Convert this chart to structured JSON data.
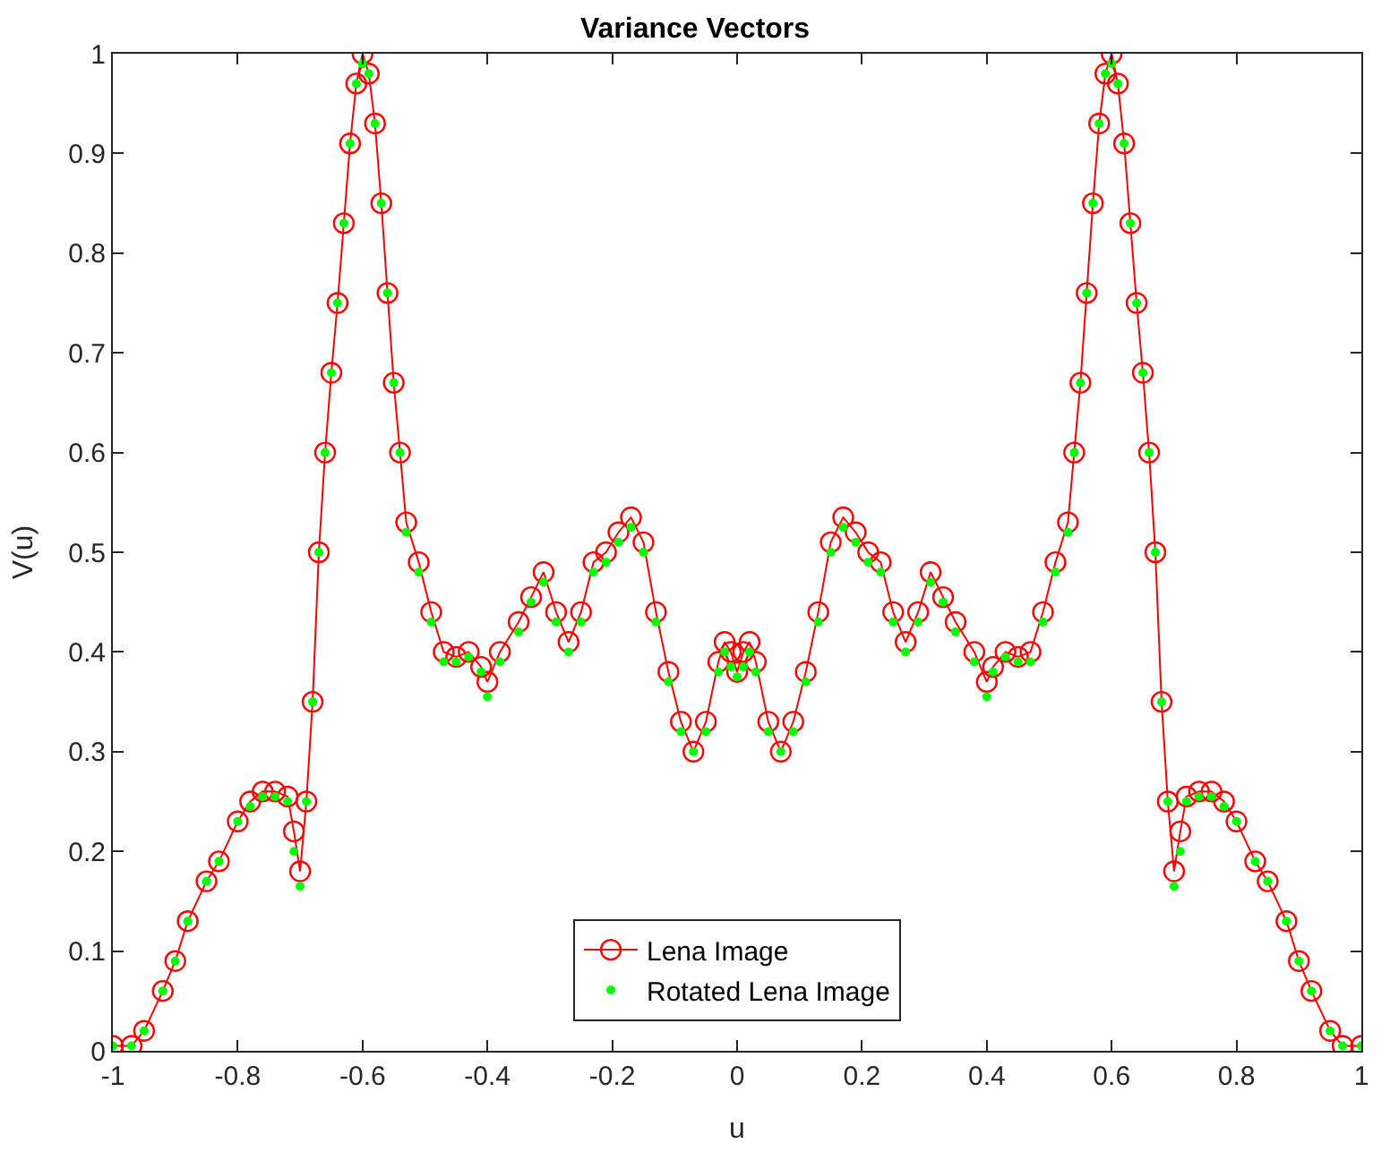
{
  "chart_data": {
    "type": "line",
    "title": "Variance Vectors",
    "xlabel": "u",
    "ylabel": "V(u)",
    "xlim": [
      -1,
      1
    ],
    "xticks": [
      -1,
      -0.8,
      -0.6,
      -0.4,
      -0.2,
      0,
      0.2,
      0.4,
      0.6,
      0.8,
      1
    ],
    "ylim": [
      0,
      1
    ],
    "yticks": [
      0,
      0.1,
      0.2,
      0.3,
      0.4,
      0.5,
      0.6,
      0.7,
      0.8,
      0.9,
      1
    ],
    "legend": "bottom",
    "series": [
      {
        "name": "Lena Image",
        "color": "#ff0000",
        "marker": "circle",
        "line_style": "solid",
        "x": [
          -1.0,
          -0.97,
          -0.95,
          -0.92,
          -0.9,
          -0.88,
          -0.85,
          -0.83,
          -0.8,
          -0.78,
          -0.76,
          -0.74,
          -0.72,
          -0.71,
          -0.7,
          -0.69,
          -0.68,
          -0.67,
          -0.66,
          -0.65,
          -0.64,
          -0.63,
          -0.62,
          -0.61,
          -0.6,
          -0.59,
          -0.58,
          -0.57,
          -0.56,
          -0.55,
          -0.54,
          -0.53,
          -0.51,
          -0.49,
          -0.47,
          -0.45,
          -0.43,
          -0.41,
          -0.4,
          -0.38,
          -0.35,
          -0.33,
          -0.31,
          -0.29,
          -0.27,
          -0.25,
          -0.23,
          -0.21,
          -0.19,
          -0.17,
          -0.15,
          -0.13,
          -0.11,
          -0.09,
          -0.07,
          -0.05,
          -0.03,
          -0.02,
          -0.01,
          0.0,
          0.01,
          0.02,
          0.03,
          0.05,
          0.07,
          0.09,
          0.11,
          0.13,
          0.15,
          0.17,
          0.19,
          0.21,
          0.23,
          0.25,
          0.27,
          0.29,
          0.31,
          0.33,
          0.35,
          0.38,
          0.4,
          0.41,
          0.43,
          0.45,
          0.47,
          0.49,
          0.51,
          0.53,
          0.54,
          0.55,
          0.56,
          0.57,
          0.58,
          0.59,
          0.6,
          0.61,
          0.62,
          0.63,
          0.64,
          0.65,
          0.66,
          0.67,
          0.68,
          0.69,
          0.7,
          0.71,
          0.72,
          0.74,
          0.76,
          0.78,
          0.8,
          0.83,
          0.85,
          0.88,
          0.9,
          0.92,
          0.95,
          0.97,
          1.0
        ],
        "values": [
          0.005,
          0.005,
          0.02,
          0.06,
          0.09,
          0.13,
          0.17,
          0.19,
          0.23,
          0.25,
          0.26,
          0.26,
          0.255,
          0.22,
          0.18,
          0.25,
          0.35,
          0.5,
          0.6,
          0.68,
          0.75,
          0.83,
          0.91,
          0.97,
          1.0,
          0.98,
          0.93,
          0.85,
          0.76,
          0.67,
          0.6,
          0.53,
          0.49,
          0.44,
          0.4,
          0.395,
          0.4,
          0.385,
          0.37,
          0.4,
          0.43,
          0.455,
          0.48,
          0.44,
          0.41,
          0.44,
          0.49,
          0.5,
          0.52,
          0.535,
          0.51,
          0.44,
          0.38,
          0.33,
          0.3,
          0.33,
          0.39,
          0.41,
          0.4,
          0.38,
          0.4,
          0.41,
          0.39,
          0.33,
          0.3,
          0.33,
          0.38,
          0.44,
          0.51,
          0.535,
          0.52,
          0.5,
          0.49,
          0.44,
          0.41,
          0.44,
          0.48,
          0.455,
          0.43,
          0.4,
          0.37,
          0.385,
          0.4,
          0.395,
          0.4,
          0.44,
          0.49,
          0.53,
          0.6,
          0.67,
          0.76,
          0.85,
          0.93,
          0.98,
          1.0,
          0.97,
          0.91,
          0.83,
          0.75,
          0.68,
          0.6,
          0.5,
          0.35,
          0.25,
          0.18,
          0.22,
          0.255,
          0.26,
          0.26,
          0.25,
          0.23,
          0.19,
          0.17,
          0.13,
          0.09,
          0.06,
          0.02,
          0.005,
          0.005
        ]
      },
      {
        "name": "Rotated Lena Image",
        "type": "scatter",
        "color": "#00ff00",
        "marker": "circle",
        "x": [
          -1.0,
          -0.97,
          -0.95,
          -0.92,
          -0.9,
          -0.88,
          -0.85,
          -0.83,
          -0.8,
          -0.78,
          -0.76,
          -0.74,
          -0.72,
          -0.71,
          -0.7,
          -0.69,
          -0.68,
          -0.67,
          -0.66,
          -0.65,
          -0.64,
          -0.63,
          -0.62,
          -0.61,
          -0.6,
          -0.59,
          -0.58,
          -0.57,
          -0.56,
          -0.55,
          -0.54,
          -0.53,
          -0.51,
          -0.49,
          -0.47,
          -0.45,
          -0.43,
          -0.41,
          -0.4,
          -0.38,
          -0.35,
          -0.33,
          -0.31,
          -0.29,
          -0.27,
          -0.25,
          -0.23,
          -0.21,
          -0.19,
          -0.17,
          -0.15,
          -0.13,
          -0.11,
          -0.09,
          -0.07,
          -0.05,
          -0.03,
          -0.02,
          -0.01,
          0.0,
          0.01,
          0.02,
          0.03,
          0.05,
          0.07,
          0.09,
          0.11,
          0.13,
          0.15,
          0.17,
          0.19,
          0.21,
          0.23,
          0.25,
          0.27,
          0.29,
          0.31,
          0.33,
          0.35,
          0.38,
          0.4,
          0.41,
          0.43,
          0.45,
          0.47,
          0.49,
          0.51,
          0.53,
          0.54,
          0.55,
          0.56,
          0.57,
          0.58,
          0.59,
          0.6,
          0.61,
          0.62,
          0.63,
          0.64,
          0.65,
          0.66,
          0.67,
          0.68,
          0.69,
          0.7,
          0.71,
          0.72,
          0.74,
          0.76,
          0.78,
          0.8,
          0.83,
          0.85,
          0.88,
          0.9,
          0.92,
          0.95,
          0.97,
          1.0
        ],
        "values": [
          0.005,
          0.005,
          0.02,
          0.06,
          0.09,
          0.13,
          0.17,
          0.19,
          0.23,
          0.245,
          0.255,
          0.255,
          0.25,
          0.2,
          0.165,
          0.25,
          0.35,
          0.5,
          0.6,
          0.68,
          0.75,
          0.83,
          0.91,
          0.97,
          0.99,
          0.98,
          0.93,
          0.85,
          0.76,
          0.67,
          0.6,
          0.52,
          0.48,
          0.43,
          0.39,
          0.39,
          0.395,
          0.38,
          0.355,
          0.39,
          0.42,
          0.45,
          0.47,
          0.43,
          0.4,
          0.43,
          0.48,
          0.49,
          0.51,
          0.525,
          0.5,
          0.43,
          0.37,
          0.32,
          0.3,
          0.32,
          0.38,
          0.4,
          0.385,
          0.375,
          0.385,
          0.4,
          0.38,
          0.32,
          0.3,
          0.32,
          0.37,
          0.43,
          0.5,
          0.525,
          0.51,
          0.49,
          0.48,
          0.43,
          0.4,
          0.43,
          0.47,
          0.45,
          0.42,
          0.39,
          0.355,
          0.38,
          0.395,
          0.39,
          0.39,
          0.43,
          0.48,
          0.52,
          0.6,
          0.67,
          0.76,
          0.85,
          0.93,
          0.98,
          0.99,
          0.97,
          0.91,
          0.83,
          0.75,
          0.68,
          0.6,
          0.5,
          0.35,
          0.25,
          0.165,
          0.2,
          0.25,
          0.255,
          0.255,
          0.245,
          0.23,
          0.19,
          0.17,
          0.13,
          0.09,
          0.06,
          0.02,
          0.005,
          0.005
        ]
      }
    ]
  }
}
